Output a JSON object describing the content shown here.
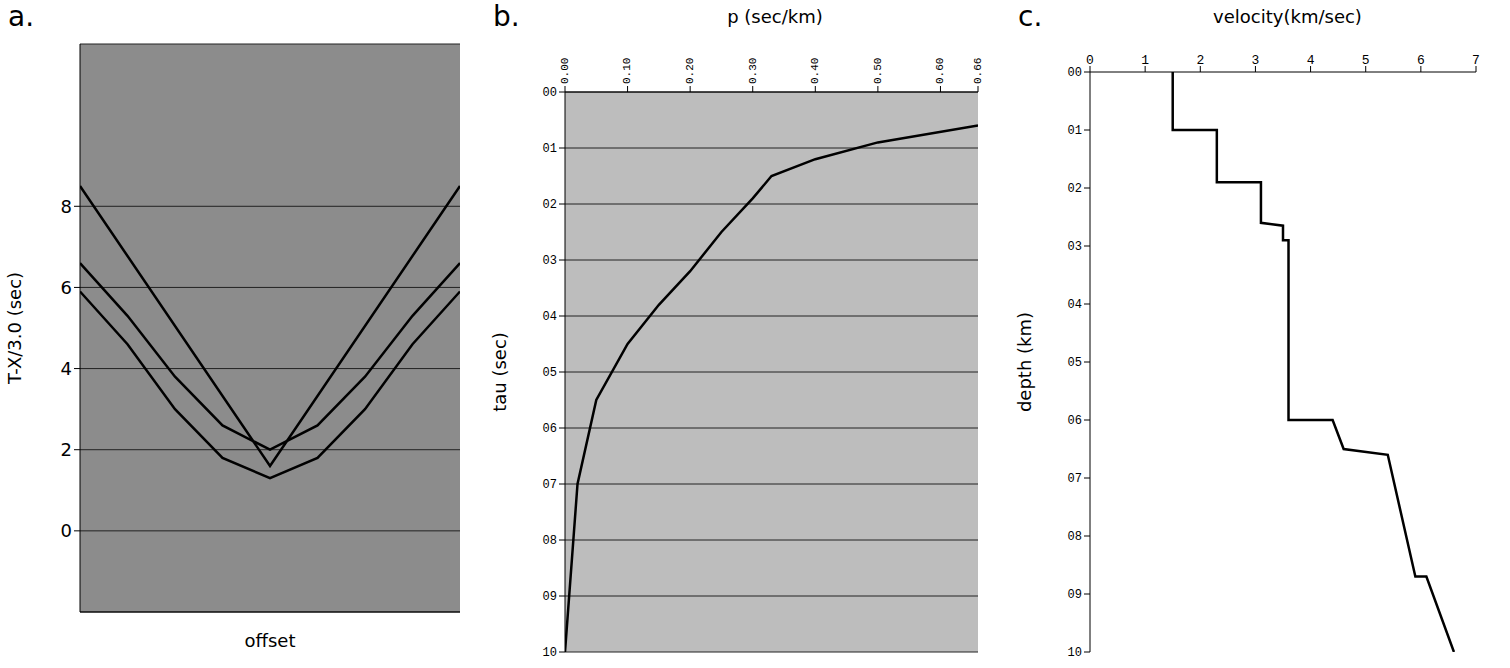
{
  "chart_data": [
    {
      "type": "line",
      "title": "a.",
      "x_label": "offset",
      "y_label": "T-X/3.0 (sec)",
      "xlim": [
        -60,
        60
      ],
      "ylim": [
        -2,
        12
      ],
      "yticks": [
        0,
        2,
        4,
        6,
        8
      ],
      "grid": true,
      "tick_labels": "y",
      "series": [
        {
          "color": "#000000",
          "x": [
            -60,
            -45,
            -30,
            -15,
            0,
            15,
            30,
            45,
            60
          ],
          "values": [
            5.9,
            4.6,
            3.0,
            1.8,
            1.3,
            1.8,
            3.0,
            4.6,
            5.9
          ]
        },
        {
          "color": "#000000",
          "x": [
            -60,
            -45,
            -30,
            -15,
            0,
            15,
            30,
            45,
            60
          ],
          "values": [
            6.6,
            5.3,
            3.8,
            2.6,
            2.0,
            2.6,
            3.8,
            5.3,
            6.6
          ]
        },
        {
          "color": "#000000",
          "x": [
            -60,
            0,
            60
          ],
          "values": [
            8.5,
            1.6,
            8.5
          ]
        }
      ]
    },
    {
      "type": "line",
      "title": "b.",
      "x_label": "p (sec/km)",
      "y_label": "tau (sec)",
      "xlim": [
        0,
        0.66
      ],
      "ylim": [
        0,
        10
      ],
      "grid": true,
      "xticks": [
        {
          "value": 0,
          "label": "0.00"
        },
        {
          "value": 0.1,
          "label": "0.10"
        },
        {
          "value": 0.2,
          "label": "0.20"
        },
        {
          "value": 0.3,
          "label": "0.30"
        },
        {
          "value": 0.4,
          "label": "0.40"
        },
        {
          "value": 0.5,
          "label": "0.50"
        },
        {
          "value": 0.6,
          "label": "0.60"
        },
        {
          "value": 0.66,
          "label": "0.66"
        }
      ],
      "yticks": [
        {
          "value": 0,
          "label": "00"
        },
        {
          "value": 1,
          "label": "01"
        },
        {
          "value": 2,
          "label": "02"
        },
        {
          "value": 3,
          "label": "03"
        },
        {
          "value": 4,
          "label": "04"
        },
        {
          "value": 5,
          "label": "05"
        },
        {
          "value": 6,
          "label": "06"
        },
        {
          "value": 7,
          "label": "07"
        },
        {
          "value": 8,
          "label": "08"
        },
        {
          "value": 9,
          "label": "09"
        },
        10
      ],
      "color": "#000000",
      "x": [
        0.66,
        0.5,
        0.4,
        0.33,
        0.3,
        0.25,
        0.2,
        0.15,
        0.1,
        0.05,
        0.02,
        0.0
      ],
      "values": [
        0.6,
        0.9,
        1.2,
        1.5,
        1.9,
        2.5,
        3.2,
        3.8,
        4.5,
        5.5,
        7.0,
        10.0
      ]
    },
    {
      "type": "line",
      "title": "c.",
      "x_label": "velocity(km/sec)",
      "y_label": "depth (km)",
      "xlim": [
        0,
        7
      ],
      "xticks": [
        0,
        1,
        2,
        3,
        4,
        5,
        6,
        7
      ],
      "ylim": [
        0,
        10
      ],
      "grid": false,
      "yticks": [
        {
          "value": 0,
          "label": "00"
        },
        {
          "value": 1,
          "label": "01"
        },
        {
          "value": 2,
          "label": "02"
        },
        {
          "value": 3,
          "label": "03"
        },
        {
          "value": 4,
          "label": "04"
        },
        {
          "value": 5,
          "label": "05"
        },
        {
          "value": 6,
          "label": "06"
        },
        {
          "value": 7,
          "label": "07"
        },
        {
          "value": 8,
          "label": "08"
        },
        {
          "value": 9,
          "label": "09"
        },
        10
      ],
      "color": "#000000",
      "x": [
        1.5,
        1.5,
        2.3,
        2.3,
        3.1,
        3.1,
        3.5,
        3.5,
        3.6,
        3.6,
        4.4,
        4.6,
        5.4,
        5.9,
        6.1,
        6.6
      ],
      "values": [
        0,
        1.0,
        1.0,
        1.9,
        1.9,
        2.6,
        2.65,
        2.9,
        2.9,
        6.0,
        6.0,
        6.5,
        6.6,
        8.7,
        8.7,
        10.0
      ]
    }
  ]
}
